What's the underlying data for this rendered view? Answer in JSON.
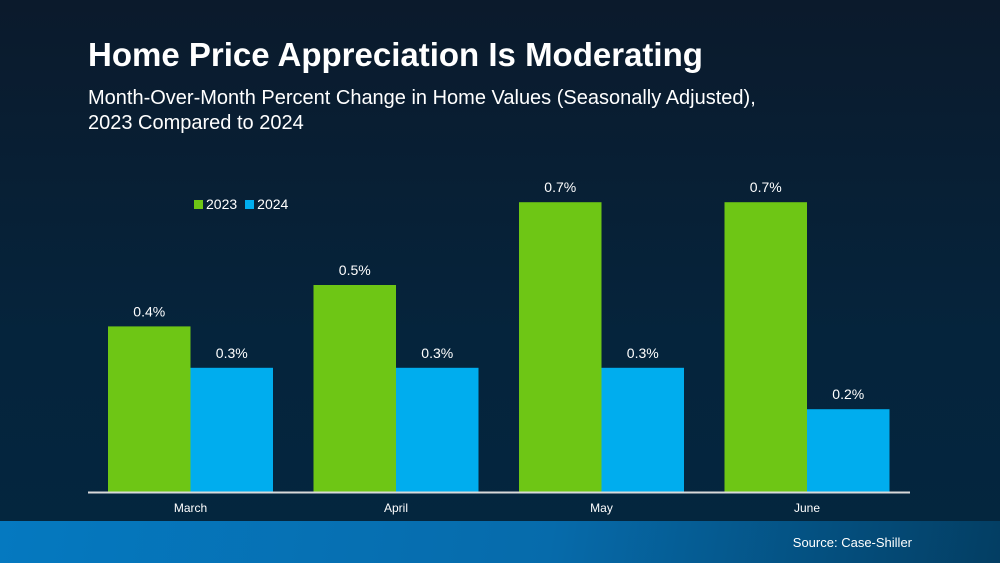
{
  "title": "Home Price Appreciation Is Moderating",
  "subtitle_line1": "Month-Over-Month Percent Change in Home Values (Seasonally Adjusted),",
  "subtitle_line2": "2023 Compared to 2024",
  "source": "Source: Case-Shiller",
  "chart_data": {
    "type": "bar",
    "title": "Home Price Appreciation Is Moderating",
    "categories": [
      "March",
      "April",
      "May",
      "June"
    ],
    "series": [
      {
        "name": "2023",
        "values": [
          0.4,
          0.5,
          0.7,
          0.7
        ],
        "color": "#6ec615",
        "labels": [
          "0.4%",
          "0.5%",
          "0.7%",
          "0.7%"
        ]
      },
      {
        "name": "2024",
        "values": [
          0.3,
          0.3,
          0.3,
          0.2
        ],
        "color": "#00adee",
        "labels": [
          "0.3%",
          "0.3%",
          "0.3%",
          "0.2%"
        ]
      }
    ],
    "ylim": [
      0,
      0.7
    ],
    "unit": "%",
    "grid": false,
    "legend": "top-left"
  }
}
